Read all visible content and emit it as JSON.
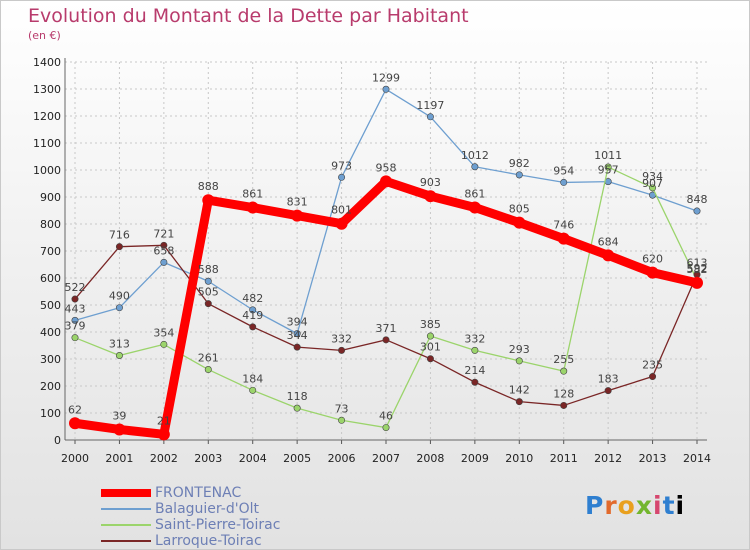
{
  "chart_data": {
    "type": "line",
    "title": "Evolution du Montant de la Dette par Habitant",
    "subtitle": "(en €)",
    "x": [
      "2000",
      "2001",
      "2002",
      "2003",
      "2004",
      "2005",
      "2006",
      "2007",
      "2008",
      "2009",
      "2010",
      "2011",
      "2012",
      "2013",
      "2014"
    ],
    "ylim": [
      0,
      1400
    ],
    "yticks": [
      0,
      100,
      200,
      300,
      400,
      500,
      600,
      700,
      800,
      900,
      1000,
      1100,
      1200,
      1300,
      1400
    ],
    "grid": true,
    "legend_placement": "bottom-left",
    "series": [
      {
        "name": "FRONTENAC",
        "color": "#ff0000",
        "values": [
          62,
          39,
          21,
          888,
          861,
          831,
          801,
          958,
          903,
          861,
          805,
          746,
          684,
          620,
          582
        ]
      },
      {
        "name": "Balaguier-d'Olt",
        "color": "#6e9fd0",
        "values": [
          443,
          490,
          658,
          588,
          482,
          394,
          973,
          1299,
          1197,
          1012,
          982,
          954,
          957,
          907,
          848
        ]
      },
      {
        "name": "Saint-Pierre-Toirac",
        "color": "#9bd46b",
        "values": [
          379,
          313,
          354,
          261,
          184,
          118,
          73,
          46,
          385,
          332,
          293,
          255,
          1011,
          934,
          592
        ]
      },
      {
        "name": "Larroque-Toirac",
        "color": "#7a2626",
        "values": [
          522,
          716,
          721,
          505,
          419,
          344,
          332,
          371,
          301,
          214,
          142,
          128,
          183,
          235,
          613
        ]
      }
    ]
  },
  "logo": [
    "P",
    "r",
    "o",
    "x",
    "i",
    "t",
    "i"
  ]
}
